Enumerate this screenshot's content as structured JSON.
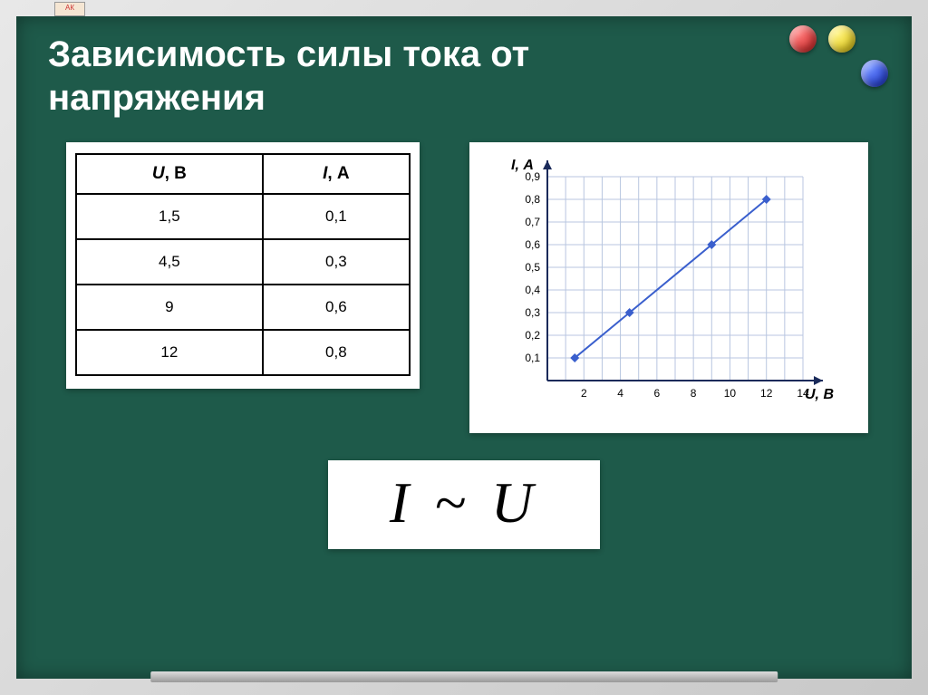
{
  "title_line1": "Зависимость силы тока от",
  "title_line2": "напряжения",
  "corner_tab": "АК",
  "magnets": {
    "red": "#c11717",
    "yellow": "#d4b800",
    "blue": "#1028c1"
  },
  "table": {
    "columns": [
      {
        "var": "U",
        "unit": ", В"
      },
      {
        "var": "I",
        "unit": ", А"
      }
    ],
    "rows": [
      [
        "1,5",
        "0,1"
      ],
      [
        "4,5",
        "0,3"
      ],
      [
        "9",
        "0,6"
      ],
      [
        "12",
        "0,8"
      ]
    ]
  },
  "chart": {
    "type": "line-scatter",
    "y_label": "I, А",
    "x_label": "U, В",
    "y_ticks": [
      "0,1",
      "0,2",
      "0,3",
      "0,4",
      "0,5",
      "0,6",
      "0,7",
      "0,8",
      "0,9"
    ],
    "y_tick_values": [
      0.1,
      0.2,
      0.3,
      0.4,
      0.5,
      0.6,
      0.7,
      0.8,
      0.9
    ],
    "x_ticks": [
      "2",
      "4",
      "6",
      "8",
      "10",
      "12",
      "14"
    ],
    "x_tick_values": [
      2,
      4,
      6,
      8,
      10,
      12,
      14
    ],
    "xlim": [
      0,
      14
    ],
    "ylim": [
      0,
      0.9
    ],
    "points": [
      {
        "x": 1.5,
        "y": 0.1
      },
      {
        "x": 4.5,
        "y": 0.3
      },
      {
        "x": 9,
        "y": 0.6
      },
      {
        "x": 12,
        "y": 0.8
      }
    ],
    "line_color": "#3a5fcd",
    "marker_color": "#3a5fcd",
    "grid_color": "#b8c6e0",
    "axis_color": "#1a2a5a",
    "background_color": "#ffffff",
    "marker_style": "diamond",
    "marker_size": 5,
    "line_width": 2,
    "label_fontsize": 16,
    "tick_fontsize": 12
  },
  "formula": "I ~ U"
}
